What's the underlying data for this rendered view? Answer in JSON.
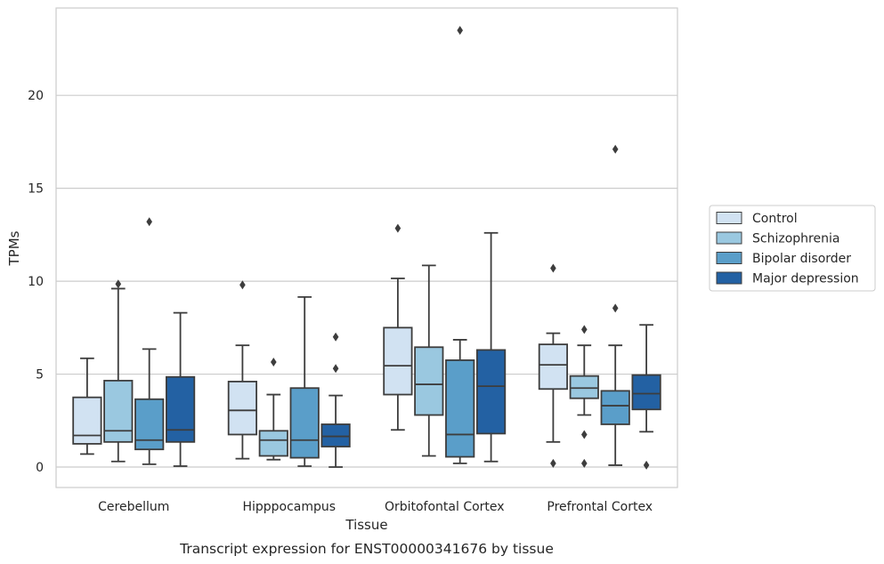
{
  "caption": "Transcript expression for ENST00000341676 by tissue",
  "chart_data": {
    "type": "box",
    "xlabel": "Tissue",
    "ylabel": "TPMs",
    "ylim": [
      -1.1,
      24.7
    ],
    "yticks": [
      0,
      5,
      10,
      15,
      20
    ],
    "grid": "horizontal",
    "legend_placement": "right",
    "categories": [
      "Cerebellum",
      "Hipppocampus",
      "Orbitofontal Cortex",
      "Prefrontal Cortex"
    ],
    "series": [
      {
        "name": "Control",
        "color": "#d1e2f2",
        "boxes": [
          {
            "whislo": 0.7,
            "q1": 1.25,
            "med": 1.7,
            "q3": 3.75,
            "whishi": 5.85,
            "fliers": []
          },
          {
            "whislo": 0.45,
            "q1": 1.75,
            "med": 3.05,
            "q3": 4.6,
            "whishi": 6.55,
            "fliers": [
              9.8
            ]
          },
          {
            "whislo": 2.0,
            "q1": 3.9,
            "med": 5.45,
            "q3": 7.5,
            "whishi": 10.15,
            "fliers": [
              12.85
            ]
          },
          {
            "whislo": 1.35,
            "q1": 4.2,
            "med": 5.5,
            "q3": 6.6,
            "whishi": 7.2,
            "fliers": [
              10.7,
              0.2
            ]
          }
        ]
      },
      {
        "name": "Schizophrenia",
        "color": "#9ac8e0",
        "boxes": [
          {
            "whislo": 0.3,
            "q1": 1.35,
            "med": 1.95,
            "q3": 4.65,
            "whishi": 9.6,
            "fliers": [
              9.85
            ]
          },
          {
            "whislo": 0.4,
            "q1": 0.6,
            "med": 1.45,
            "q3": 1.95,
            "whishi": 3.9,
            "fliers": [
              5.65
            ]
          },
          {
            "whislo": 0.6,
            "q1": 2.8,
            "med": 4.45,
            "q3": 6.45,
            "whishi": 10.85,
            "fliers": []
          },
          {
            "whislo": 2.8,
            "q1": 3.7,
            "med": 4.25,
            "q3": 4.9,
            "whishi": 6.55,
            "fliers": [
              7.4,
              1.75,
              0.2
            ]
          }
        ]
      },
      {
        "name": "Bipolar disorder",
        "color": "#5a9ec9",
        "boxes": [
          {
            "whislo": 0.15,
            "q1": 0.95,
            "med": 1.45,
            "q3": 3.65,
            "whishi": 6.35,
            "fliers": [
              13.2
            ]
          },
          {
            "whislo": 0.05,
            "q1": 0.5,
            "med": 1.45,
            "q3": 4.25,
            "whishi": 9.15,
            "fliers": []
          },
          {
            "whislo": 0.2,
            "q1": 0.55,
            "med": 1.75,
            "q3": 5.75,
            "whishi": 6.85,
            "fliers": [
              23.5
            ]
          },
          {
            "whislo": 0.1,
            "q1": 2.3,
            "med": 3.3,
            "q3": 4.1,
            "whishi": 6.55,
            "fliers": [
              8.55,
              17.1
            ]
          }
        ]
      },
      {
        "name": "Major depression",
        "color": "#2361a3",
        "boxes": [
          {
            "whislo": 0.05,
            "q1": 1.35,
            "med": 2.0,
            "q3": 4.85,
            "whishi": 8.3,
            "fliers": []
          },
          {
            "whislo": 0.0,
            "q1": 1.1,
            "med": 1.65,
            "q3": 2.3,
            "whishi": 3.85,
            "fliers": [
              7.0,
              5.3
            ]
          },
          {
            "whislo": 0.3,
            "q1": 1.8,
            "med": 4.35,
            "q3": 6.3,
            "whishi": 12.6,
            "fliers": []
          },
          {
            "whislo": 1.9,
            "q1": 3.1,
            "med": 3.95,
            "q3": 4.95,
            "whishi": 7.65,
            "fliers": [
              0.1
            ]
          }
        ]
      }
    ]
  }
}
